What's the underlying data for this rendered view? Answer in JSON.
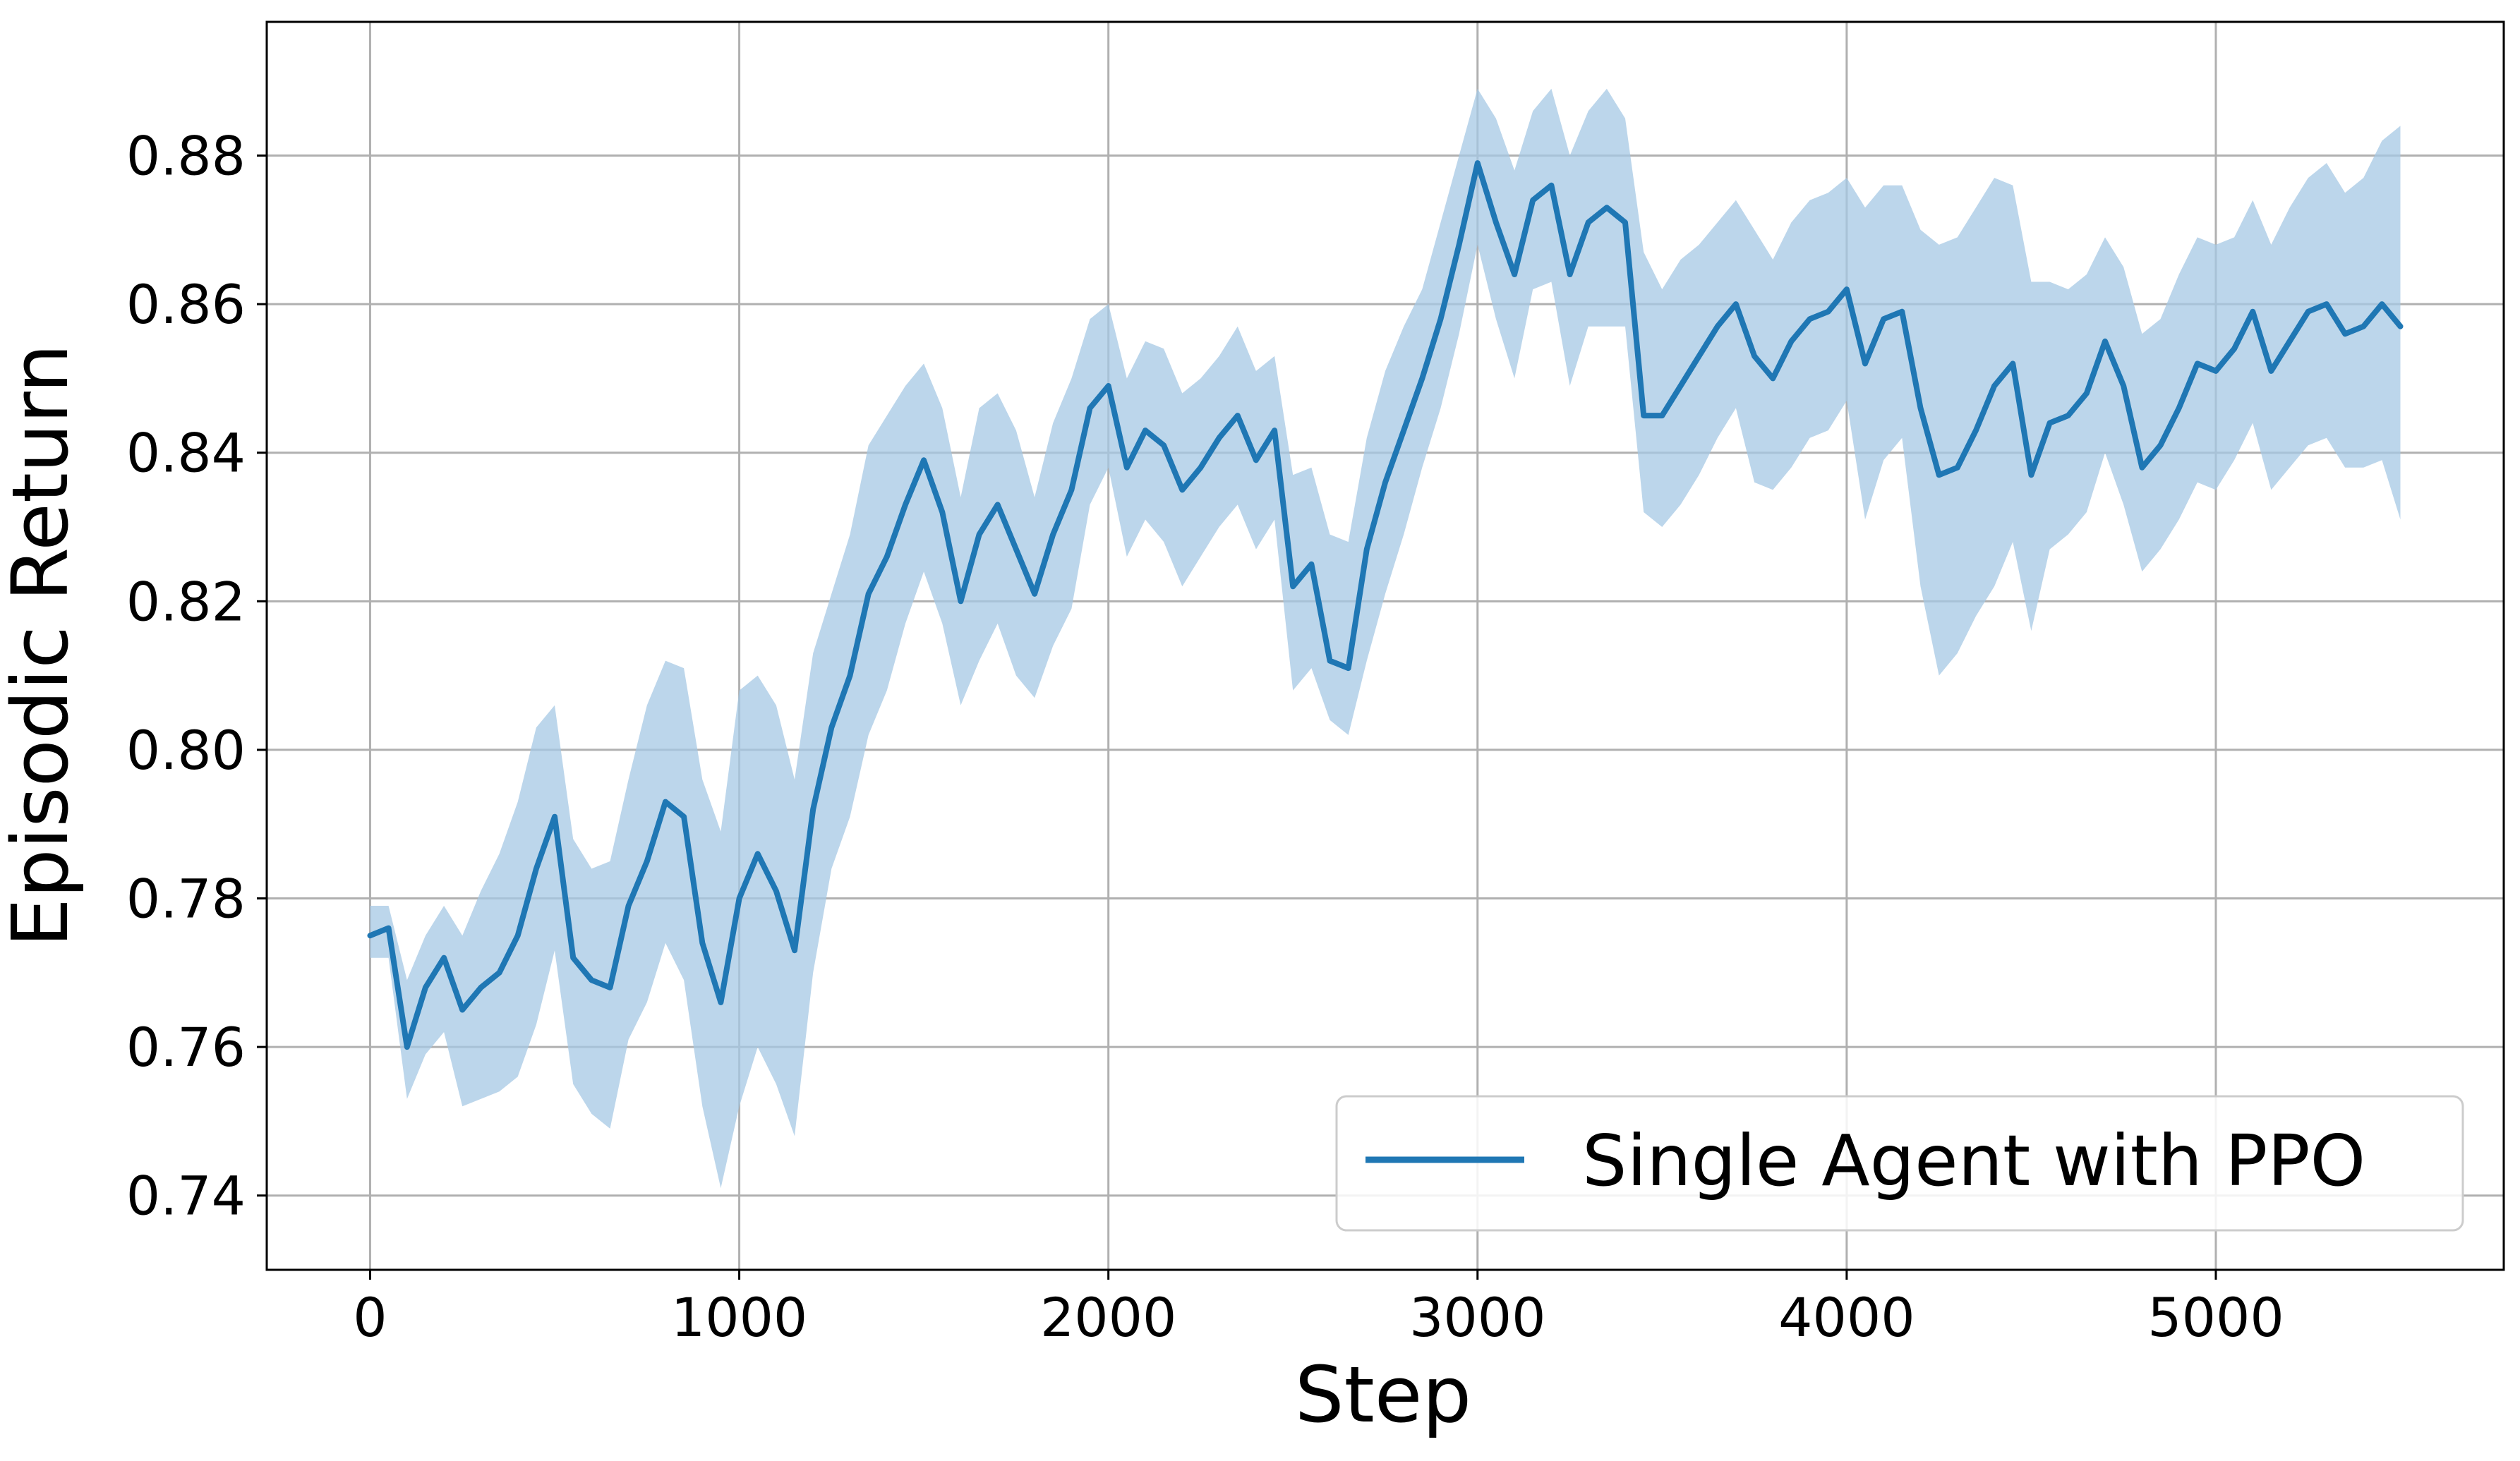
{
  "chart_data": {
    "type": "line",
    "title": "",
    "xlabel": "Step",
    "ylabel": "Episodic Return",
    "xlim": [
      -280,
      5780
    ],
    "ylim": [
      0.73,
      0.898
    ],
    "xticks": [
      0,
      1000,
      2000,
      3000,
      4000,
      5000
    ],
    "xtick_labels": [
      "0",
      "1000",
      "2000",
      "3000",
      "4000",
      "5000"
    ],
    "yticks": [
      0.74,
      0.76,
      0.78,
      0.8,
      0.82,
      0.84,
      0.86,
      0.88
    ],
    "ytick_labels": [
      "0.74",
      "0.76",
      "0.78",
      "0.80",
      "0.82",
      "0.84",
      "0.86",
      "0.88"
    ],
    "grid": true,
    "legend_position": "lower-right",
    "series": [
      {
        "name": "Single Agent with PPO",
        "color": "#1f77b4",
        "band_color": "#a6c8e4",
        "x": [
          0,
          50,
          100,
          150,
          200,
          250,
          300,
          350,
          400,
          450,
          500,
          550,
          600,
          650,
          700,
          750,
          800,
          850,
          900,
          950,
          1000,
          1050,
          1100,
          1150,
          1200,
          1250,
          1300,
          1350,
          1400,
          1450,
          1500,
          1550,
          1600,
          1650,
          1700,
          1750,
          1800,
          1850,
          1900,
          1950,
          2000,
          2050,
          2100,
          2150,
          2200,
          2250,
          2300,
          2350,
          2400,
          2450,
          2500,
          2550,
          2600,
          2650,
          2700,
          2750,
          2800,
          2850,
          2900,
          2950,
          3000,
          3050,
          3100,
          3150,
          3200,
          3250,
          3300,
          3350,
          3400,
          3450,
          3500,
          3550,
          3600,
          3650,
          3700,
          3750,
          3800,
          3850,
          3900,
          3950,
          4000,
          4050,
          4100,
          4150,
          4200,
          4250,
          4300,
          4350,
          4400,
          4450,
          4500,
          4550,
          4600,
          4650,
          4700,
          4750,
          4800,
          4850,
          4900,
          4950,
          5000,
          5050,
          5100,
          5150,
          5200,
          5250,
          5300,
          5350,
          5400,
          5450,
          5500
        ],
        "mean": [
          0.775,
          0.776,
          0.76,
          0.768,
          0.772,
          0.765,
          0.768,
          0.77,
          0.775,
          0.784,
          0.791,
          0.772,
          0.769,
          0.768,
          0.779,
          0.785,
          0.793,
          0.791,
          0.774,
          0.766,
          0.78,
          0.786,
          0.781,
          0.773,
          0.792,
          0.803,
          0.81,
          0.821,
          0.826,
          0.833,
          0.839,
          0.832,
          0.82,
          0.829,
          0.833,
          0.827,
          0.821,
          0.829,
          0.835,
          0.846,
          0.849,
          0.838,
          0.843,
          0.841,
          0.835,
          0.838,
          0.842,
          0.845,
          0.839,
          0.843,
          0.822,
          0.825,
          0.812,
          0.811,
          0.827,
          0.836,
          0.843,
          0.85,
          0.858,
          0.868,
          0.879,
          0.871,
          0.864,
          0.874,
          0.876,
          0.864,
          0.871,
          0.873,
          0.871,
          0.845,
          0.845,
          0.849,
          0.853,
          0.857,
          0.86,
          0.853,
          0.85,
          0.855,
          0.858,
          0.859,
          0.862,
          0.852,
          0.858,
          0.859,
          0.846,
          0.837,
          0.838,
          0.843,
          0.849,
          0.852,
          0.837,
          0.844,
          0.845,
          0.848,
          0.855,
          0.849,
          0.838,
          0.841,
          0.846,
          0.852,
          0.851,
          0.854,
          0.859,
          0.851,
          0.855,
          0.859,
          0.86,
          0.856,
          0.857,
          0.86,
          0.857
        ],
        "upper": [
          0.779,
          0.779,
          0.769,
          0.775,
          0.779,
          0.775,
          0.781,
          0.786,
          0.793,
          0.803,
          0.806,
          0.788,
          0.784,
          0.785,
          0.796,
          0.806,
          0.812,
          0.811,
          0.796,
          0.789,
          0.808,
          0.81,
          0.806,
          0.796,
          0.813,
          0.821,
          0.829,
          0.841,
          0.845,
          0.849,
          0.852,
          0.846,
          0.834,
          0.846,
          0.848,
          0.843,
          0.834,
          0.844,
          0.85,
          0.858,
          0.86,
          0.85,
          0.855,
          0.854,
          0.848,
          0.85,
          0.853,
          0.857,
          0.851,
          0.853,
          0.837,
          0.838,
          0.829,
          0.828,
          0.842,
          0.851,
          0.857,
          0.862,
          0.871,
          0.88,
          0.889,
          0.885,
          0.878,
          0.886,
          0.889,
          0.88,
          0.886,
          0.889,
          0.885,
          0.867,
          0.862,
          0.866,
          0.868,
          0.871,
          0.874,
          0.87,
          0.866,
          0.871,
          0.874,
          0.875,
          0.877,
          0.873,
          0.876,
          0.876,
          0.87,
          0.868,
          0.869,
          0.873,
          0.877,
          0.876,
          0.863,
          0.863,
          0.862,
          0.864,
          0.869,
          0.865,
          0.856,
          0.858,
          0.864,
          0.869,
          0.868,
          0.869,
          0.874,
          0.868,
          0.873,
          0.877,
          0.879,
          0.875,
          0.877,
          0.882,
          0.884
        ],
        "lower": [
          0.772,
          0.772,
          0.753,
          0.759,
          0.762,
          0.752,
          0.753,
          0.754,
          0.756,
          0.763,
          0.773,
          0.755,
          0.751,
          0.749,
          0.761,
          0.766,
          0.774,
          0.769,
          0.752,
          0.741,
          0.752,
          0.76,
          0.755,
          0.748,
          0.77,
          0.784,
          0.791,
          0.802,
          0.808,
          0.817,
          0.824,
          0.817,
          0.806,
          0.812,
          0.817,
          0.81,
          0.807,
          0.814,
          0.819,
          0.833,
          0.838,
          0.826,
          0.831,
          0.828,
          0.822,
          0.826,
          0.83,
          0.833,
          0.827,
          0.831,
          0.808,
          0.811,
          0.804,
          0.802,
          0.812,
          0.821,
          0.829,
          0.838,
          0.846,
          0.856,
          0.868,
          0.858,
          0.85,
          0.862,
          0.863,
          0.849,
          0.857,
          0.857,
          0.857,
          0.832,
          0.83,
          0.833,
          0.837,
          0.842,
          0.846,
          0.836,
          0.835,
          0.838,
          0.842,
          0.843,
          0.847,
          0.831,
          0.839,
          0.842,
          0.822,
          0.81,
          0.813,
          0.818,
          0.822,
          0.828,
          0.816,
          0.827,
          0.829,
          0.832,
          0.84,
          0.833,
          0.824,
          0.827,
          0.831,
          0.836,
          0.835,
          0.839,
          0.844,
          0.835,
          0.838,
          0.841,
          0.842,
          0.838,
          0.838,
          0.839,
          0.831
        ]
      }
    ]
  }
}
